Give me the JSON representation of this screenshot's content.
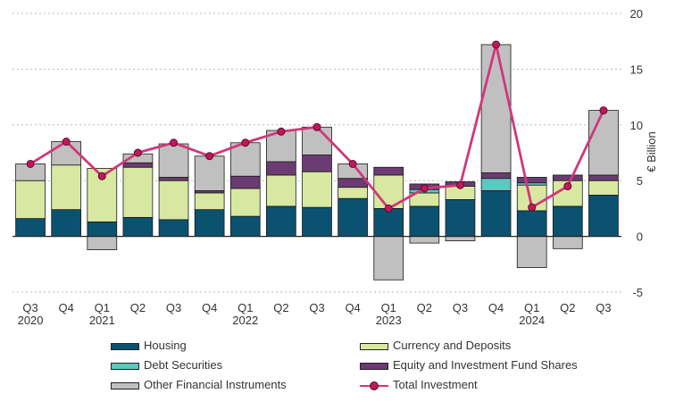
{
  "chart_data": {
    "type": "bar",
    "stacked": true,
    "categories": [
      "Q3 2020",
      "Q4",
      "Q1 2021",
      "Q2",
      "Q3",
      "Q4",
      "Q1 2022",
      "Q2",
      "Q3",
      "Q4",
      "Q1 2023",
      "Q2",
      "Q3",
      "Q4",
      "Q1 2024",
      "Q2",
      "Q3"
    ],
    "tick_labels": [
      [
        "Q3",
        "2020"
      ],
      [
        "Q4",
        ""
      ],
      [
        "Q1",
        "2021"
      ],
      [
        "Q2",
        ""
      ],
      [
        "Q3",
        ""
      ],
      [
        "Q4",
        ""
      ],
      [
        "Q1",
        "2022"
      ],
      [
        "Q2",
        ""
      ],
      [
        "Q3",
        ""
      ],
      [
        "Q4",
        ""
      ],
      [
        "Q1",
        "2023"
      ],
      [
        "Q2",
        ""
      ],
      [
        "Q3",
        ""
      ],
      [
        "Q4",
        ""
      ],
      [
        "Q1",
        "2024"
      ],
      [
        "Q2",
        ""
      ],
      [
        "Q3",
        ""
      ]
    ],
    "series": [
      {
        "name": "Housing",
        "color": "#0b5270",
        "values": [
          1.6,
          2.4,
          1.3,
          1.7,
          1.5,
          2.4,
          1.8,
          2.7,
          2.6,
          3.4,
          2.5,
          2.7,
          3.3,
          4.1,
          2.3,
          2.7,
          3.7
        ]
      },
      {
        "name": "Currency and Deposits",
        "color": "#d9e8a0",
        "values": [
          3.4,
          4.0,
          4.8,
          4.5,
          3.5,
          1.5,
          2.5,
          2.8,
          3.2,
          1.0,
          3.0,
          1.2,
          1.2,
          0.0,
          2.3,
          2.3,
          1.3
        ]
      },
      {
        "name": "Debt Securities",
        "color": "#5cc8c0",
        "values": [
          0.0,
          0.0,
          0.0,
          0.0,
          0.0,
          0.0,
          0.0,
          0.0,
          0.0,
          0.0,
          0.0,
          0.3,
          0.0,
          1.1,
          0.2,
          0.0,
          0.0
        ]
      },
      {
        "name": "Equity and Investment Fund Shares",
        "color": "#6b3b73",
        "values": [
          0.0,
          0.0,
          0.0,
          0.4,
          0.3,
          0.2,
          1.1,
          1.2,
          1.5,
          0.8,
          0.7,
          0.5,
          0.4,
          0.5,
          0.5,
          0.5,
          0.5
        ]
      },
      {
        "name": "Other Financial Instruments",
        "color": "#c0c0c0",
        "values": [
          1.5,
          2.1,
          -1.2,
          0.8,
          3.0,
          3.1,
          3.0,
          2.8,
          2.5,
          1.3,
          -3.9,
          -0.6,
          -0.4,
          11.5,
          -2.8,
          -1.1,
          5.8
        ]
      }
    ],
    "line": {
      "name": "Total Investment",
      "color": "#d1377a",
      "values": [
        6.5,
        8.5,
        5.4,
        7.5,
        8.4,
        7.2,
        8.4,
        9.4,
        9.8,
        6.5,
        2.5,
        4.3,
        4.6,
        17.2,
        2.6,
        4.5,
        11.3
      ]
    },
    "ylabel": "€ Billion",
    "ylim": [
      -5,
      20
    ],
    "yticks": [
      -5,
      0,
      5,
      10,
      15,
      20
    ],
    "grid": "horizontal dotted",
    "y_axis_position": "right",
    "legend_placement": "bottom"
  },
  "legend": {
    "housing": "Housing",
    "currency": "Currency and Deposits",
    "debt": "Debt Securities",
    "equity": "Equity and Investment Fund Shares",
    "other": "Other Financial Instruments",
    "total": "Total Investment"
  }
}
